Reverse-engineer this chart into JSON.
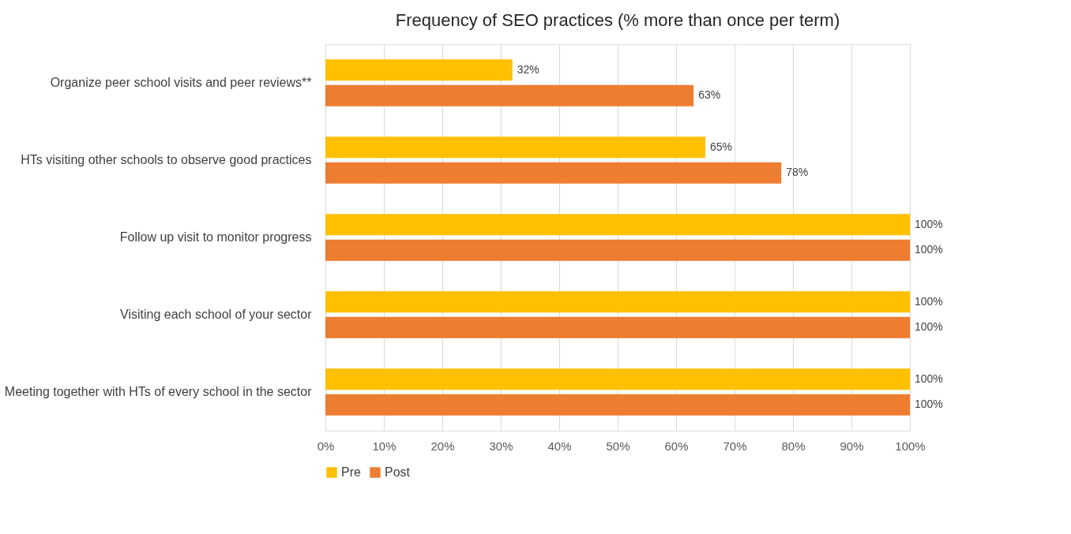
{
  "chart_data": {
    "type": "bar",
    "orientation": "horizontal",
    "title": "Frequency of SEO practices (% more than once per term)",
    "categories": [
      "Organize peer school visits and peer reviews**",
      "HTs visiting other schools to observe good practices",
      "Follow up visit to monitor progress",
      "Visiting each school of your sector",
      "Meeting together with HTs of every school in the sector"
    ],
    "series": [
      {
        "name": "Pre",
        "color": "#ffc000",
        "values": [
          32,
          65,
          100,
          100,
          100
        ],
        "value_labels": [
          "32%",
          "65%",
          "100%",
          "100%",
          "100%"
        ]
      },
      {
        "name": "Post",
        "color": "#ed7d31",
        "values": [
          63,
          78,
          100,
          100,
          100
        ],
        "value_labels": [
          "63%",
          "78%",
          "100%",
          "100%",
          "100%"
        ]
      }
    ],
    "xlim": [
      0,
      100
    ],
    "xticks": [
      {
        "value": 0,
        "label": "0%"
      },
      {
        "value": 10,
        "label": "10%"
      },
      {
        "value": 20,
        "label": "20%"
      },
      {
        "value": 30,
        "label": "30%"
      },
      {
        "value": 40,
        "label": "40%"
      },
      {
        "value": 50,
        "label": "50%"
      },
      {
        "value": 60,
        "label": "60%"
      },
      {
        "value": 70,
        "label": "70%"
      },
      {
        "value": 80,
        "label": "80%"
      },
      {
        "value": 90,
        "label": "90%"
      },
      {
        "value": 100,
        "label": "100%"
      }
    ],
    "grid": "x",
    "legend": "bottom"
  }
}
